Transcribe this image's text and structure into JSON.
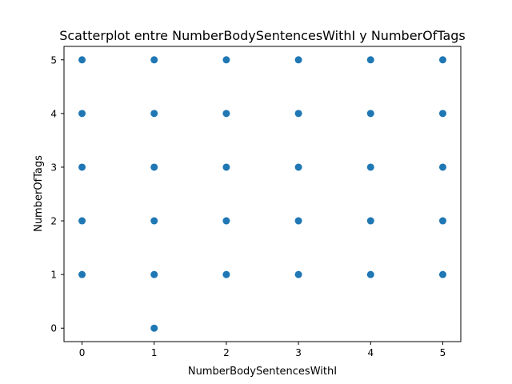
{
  "chart_data": {
    "type": "scatter",
    "title": "Scatterplot entre NumberBodySentencesWithI y NumberOfTags",
    "xlabel": "NumberBodySentencesWithI",
    "ylabel": "NumberOfTags",
    "xlim": [
      -0.25,
      5.25
    ],
    "ylim": [
      -0.25,
      5.25
    ],
    "xticks": [
      "0",
      "1",
      "2",
      "3",
      "4",
      "5"
    ],
    "yticks": [
      "0",
      "1",
      "2",
      "3",
      "4",
      "5"
    ],
    "grid": false,
    "marker_color": "#1f77b4",
    "points": [
      {
        "x": 0,
        "y": 1
      },
      {
        "x": 0,
        "y": 2
      },
      {
        "x": 0,
        "y": 3
      },
      {
        "x": 0,
        "y": 4
      },
      {
        "x": 0,
        "y": 5
      },
      {
        "x": 1,
        "y": 0
      },
      {
        "x": 1,
        "y": 1
      },
      {
        "x": 1,
        "y": 2
      },
      {
        "x": 1,
        "y": 3
      },
      {
        "x": 1,
        "y": 4
      },
      {
        "x": 1,
        "y": 5
      },
      {
        "x": 2,
        "y": 1
      },
      {
        "x": 2,
        "y": 2
      },
      {
        "x": 2,
        "y": 3
      },
      {
        "x": 2,
        "y": 4
      },
      {
        "x": 2,
        "y": 5
      },
      {
        "x": 3,
        "y": 1
      },
      {
        "x": 3,
        "y": 2
      },
      {
        "x": 3,
        "y": 3
      },
      {
        "x": 3,
        "y": 4
      },
      {
        "x": 3,
        "y": 5
      },
      {
        "x": 4,
        "y": 1
      },
      {
        "x": 4,
        "y": 2
      },
      {
        "x": 4,
        "y": 3
      },
      {
        "x": 4,
        "y": 4
      },
      {
        "x": 4,
        "y": 5
      },
      {
        "x": 5,
        "y": 1
      },
      {
        "x": 5,
        "y": 2
      },
      {
        "x": 5,
        "y": 3
      },
      {
        "x": 5,
        "y": 4
      },
      {
        "x": 5,
        "y": 5
      }
    ]
  }
}
